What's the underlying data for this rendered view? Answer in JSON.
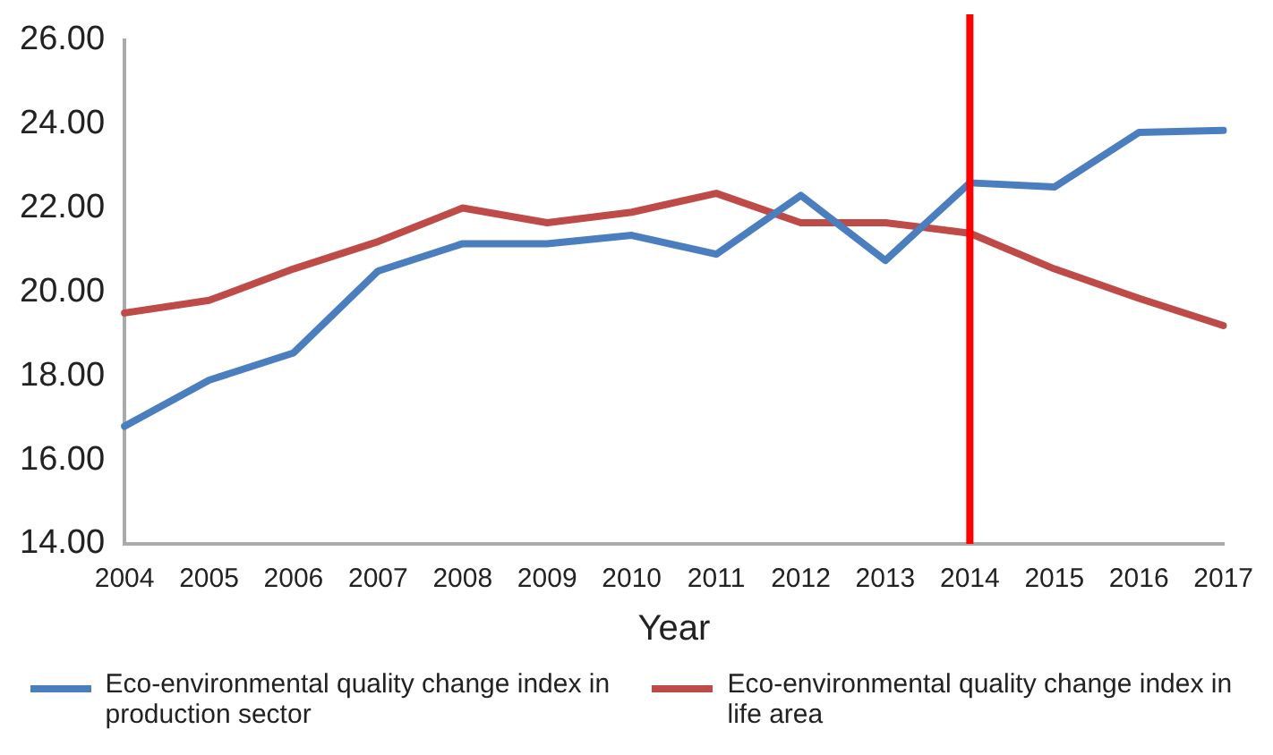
{
  "chart_data": {
    "type": "line",
    "xlabel": "Year",
    "categories": [
      "2004",
      "2005",
      "2006",
      "2007",
      "2008",
      "2009",
      "2010",
      "2011",
      "2012",
      "2013",
      "2014",
      "2015",
      "2016",
      "2017"
    ],
    "series": [
      {
        "name": "Eco-environmental quality change index in production sector",
        "color": "#4a7ebf",
        "values": [
          16.8,
          17.9,
          18.55,
          20.5,
          21.15,
          21.15,
          21.35,
          20.9,
          22.3,
          20.75,
          22.6,
          22.5,
          23.8,
          23.85
        ]
      },
      {
        "name": "Eco-environmental quality change index in life area",
        "color": "#be4b48",
        "values": [
          19.5,
          19.8,
          20.55,
          21.2,
          22.0,
          21.65,
          21.9,
          22.35,
          21.65,
          21.65,
          21.4,
          20.55,
          19.85,
          19.2
        ]
      }
    ],
    "ylim": [
      14,
      26
    ],
    "yticks": [
      {
        "value": 14,
        "label": "14.00"
      },
      {
        "value": 16,
        "label": "16.00"
      },
      {
        "value": 18,
        "label": "18.00"
      },
      {
        "value": 20,
        "label": "20.00"
      },
      {
        "value": 22,
        "label": "22.00"
      },
      {
        "value": 24,
        "label": "24.00"
      },
      {
        "value": 26,
        "label": "26.00"
      }
    ],
    "ref_lines": [
      {
        "axis": "x",
        "value": "2014",
        "color": "#ff0000"
      }
    ],
    "grid": false,
    "legend": "bottom",
    "marker": "none",
    "line_style": "solid"
  }
}
